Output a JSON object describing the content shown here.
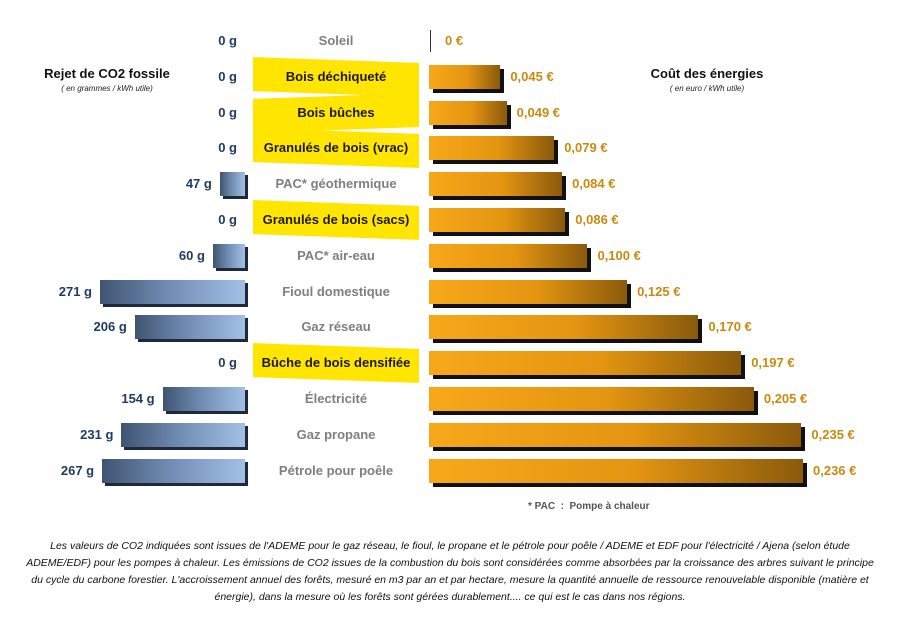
{
  "left_header": {
    "title": "Rejet de CO2 fossile",
    "subtitle": "( en grammes / kWh utile)"
  },
  "right_header": {
    "title": "Coût des énergies",
    "subtitle": "( en euro / kWh utile)"
  },
  "colors": {
    "wood_highlight": "#ffe500",
    "co2_label": "#1f3c63",
    "cost_label": "#c98a0f",
    "energy_label": "#7f7f7f"
  },
  "chart_data": {
    "type": "bar",
    "layout": "back-to-back horizontal bars",
    "series": [
      {
        "name": "Rejet de CO2 fossile",
        "unit": "g/kWh utile"
      },
      {
        "name": "Coût des énergies",
        "unit": "€/kWh utile"
      }
    ],
    "rows": [
      {
        "energy": "Soleil",
        "co2": 0,
        "co2_label": "0 g",
        "cost": 0,
        "cost_label": "0 €",
        "wood": false
      },
      {
        "energy": "Bois déchiqueté",
        "co2": 0,
        "co2_label": "0 g",
        "cost": 0.045,
        "cost_label": "0,045 €",
        "wood": true
      },
      {
        "energy": "Bois bûches",
        "co2": 0,
        "co2_label": "0 g",
        "cost": 0.049,
        "cost_label": "0,049 €",
        "wood": true
      },
      {
        "energy": "Granulés de bois (vrac)",
        "co2": 0,
        "co2_label": "0 g",
        "cost": 0.079,
        "cost_label": "0,079 €",
        "wood": true
      },
      {
        "energy": "PAC* géothermique",
        "co2": 47,
        "co2_label": "47 g",
        "cost": 0.084,
        "cost_label": "0,084 €",
        "wood": false
      },
      {
        "energy": "Granulés de bois (sacs)",
        "co2": 0,
        "co2_label": "0 g",
        "cost": 0.086,
        "cost_label": "0,086 €",
        "wood": true
      },
      {
        "energy": "PAC* air-eau",
        "co2": 60,
        "co2_label": "60 g",
        "cost": 0.1,
        "cost_label": "0,100 €",
        "wood": false
      },
      {
        "energy": "Fioul domestique",
        "co2": 271,
        "co2_label": "271 g",
        "cost": 0.125,
        "cost_label": "0,125 €",
        "wood": false
      },
      {
        "energy": "Gaz réseau",
        "co2": 206,
        "co2_label": "206 g",
        "cost": 0.17,
        "cost_label": "0,170 €",
        "wood": false
      },
      {
        "energy": "Bûche de bois densifiée",
        "co2": 0,
        "co2_label": "0 g",
        "cost": 0.197,
        "cost_label": "0,197 €",
        "wood": true
      },
      {
        "energy": "Électricité",
        "co2": 154,
        "co2_label": "154 g",
        "cost": 0.205,
        "cost_label": "0,205 €",
        "wood": false
      },
      {
        "energy": "Gaz propane",
        "co2": 231,
        "co2_label": "231 g",
        "cost": 0.235,
        "cost_label": "0,235 €",
        "wood": false
      },
      {
        "energy": "Pétrole pour poêle",
        "co2": 267,
        "co2_label": "267 g",
        "cost": 0.236,
        "cost_label": "0,236 €",
        "wood": false
      }
    ],
    "co2_max": 271,
    "cost_max": 0.236
  },
  "footnote_pac": "* PAC  :  Pompe à chaleur",
  "note": "Les valeurs de CO2 indiquées sont issues de l'ADEME pour le gaz réseau, le fioul, le propane et le pétrole pour poêle / ADEME et EDF pour l'électricité / Ajena (selon étude ADEME/EDF) pour les pompes à chaleur. Les émissions de CO2 issues de la combustion du bois sont considérées comme absorbées par la croissance des arbres suivant le principe du cycle du carbone forestier. L'accroissement annuel des forêts, mesuré en m3 par an et par hectare, mesure la quantité annuelle de ressource renouvelable disponible (matière et énergie), dans la mesure où les forêts sont gérées durablement.... ce qui est le cas dans nos régions."
}
